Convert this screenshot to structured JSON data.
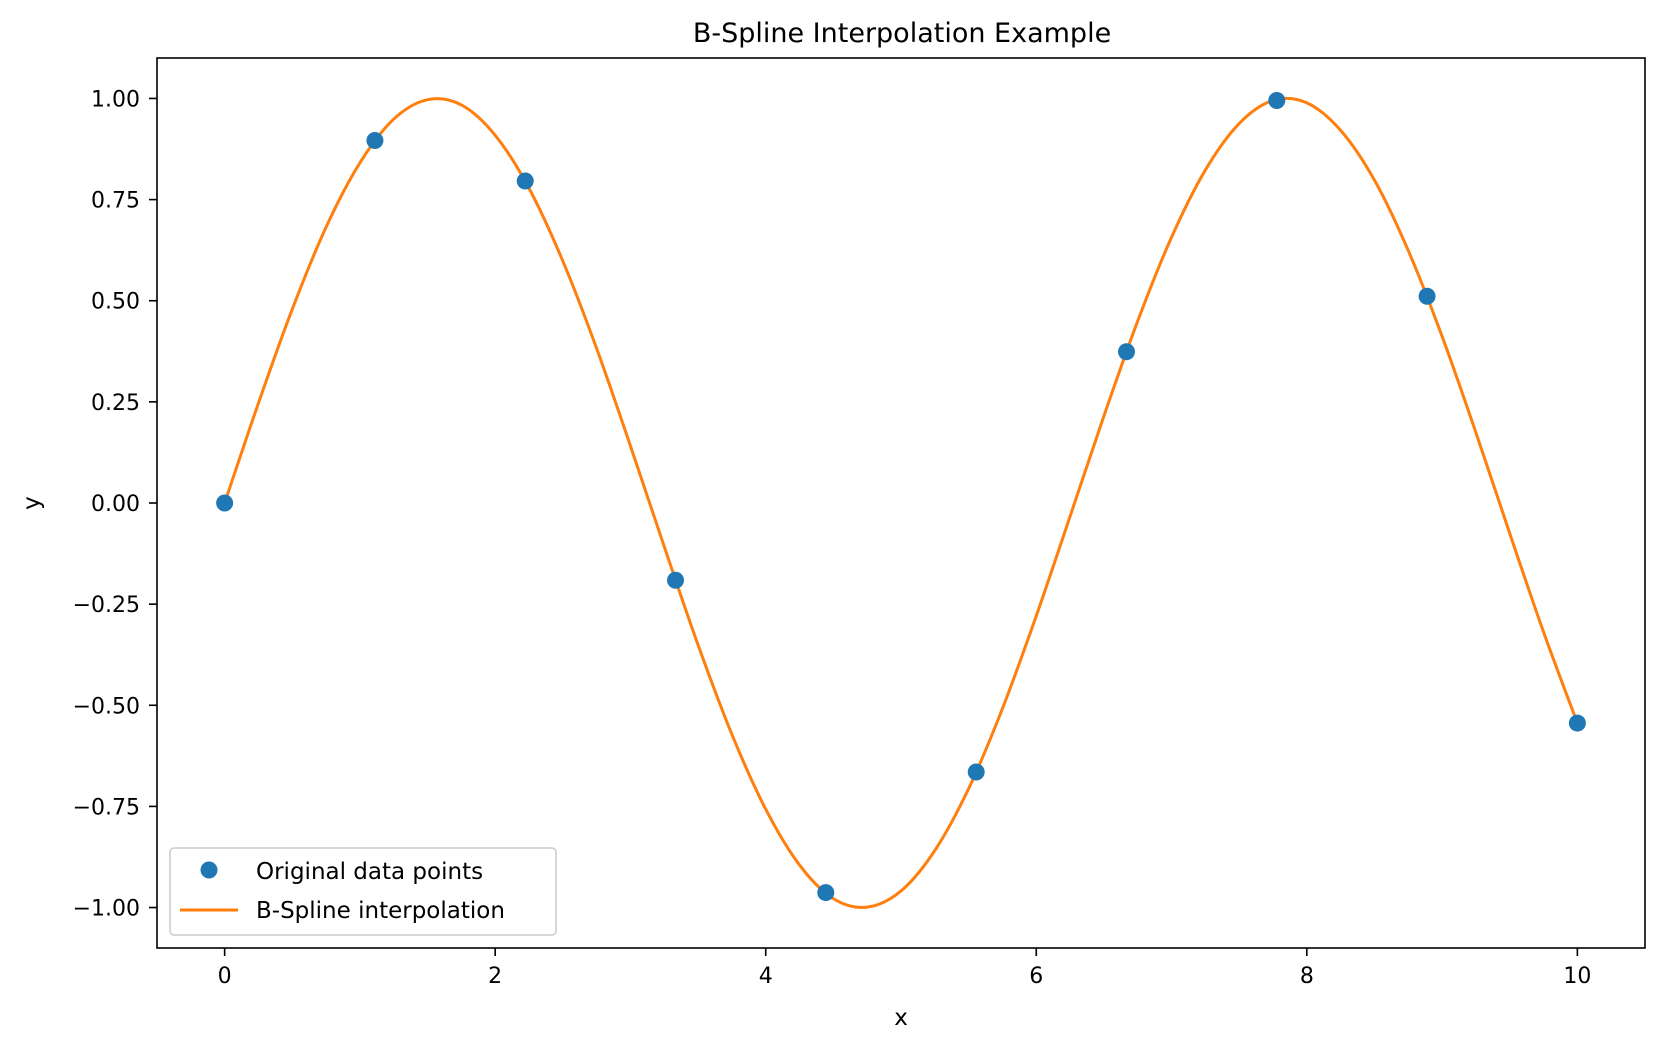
{
  "chart_data": {
    "type": "line",
    "title": "B-Spline Interpolation Example",
    "xlabel": "x",
    "ylabel": "y",
    "xlim": [
      -0.5,
      10.5
    ],
    "ylim": [
      -1.1,
      1.1
    ],
    "xticks": [
      0,
      2,
      4,
      6,
      8,
      10
    ],
    "xtick_labels": [
      "0",
      "2",
      "4",
      "6",
      "8",
      "10"
    ],
    "yticks": [
      -1.0,
      -0.75,
      -0.5,
      -0.25,
      0.0,
      0.25,
      0.5,
      0.75,
      1.0
    ],
    "ytick_labels": [
      "−1.00",
      "−0.75",
      "−0.50",
      "−0.25",
      "0.00",
      "0.25",
      "0.50",
      "0.75",
      "1.00"
    ],
    "grid": false,
    "legend_position": "lower left",
    "series": [
      {
        "name": "Original data points",
        "kind": "scatter",
        "color": "#1f77b4",
        "x": [
          0.0,
          1.111,
          2.222,
          3.333,
          4.444,
          5.556,
          6.667,
          7.778,
          8.889,
          10.0
        ],
        "y": [
          0.0,
          0.896,
          0.796,
          -0.191,
          -0.963,
          -0.665,
          0.374,
          0.995,
          0.511,
          -0.544
        ]
      },
      {
        "name": "B-Spline interpolation",
        "kind": "line",
        "color": "#ff7f0e",
        "x": [
          0.0,
          0.25,
          0.5,
          0.75,
          1.0,
          1.25,
          1.5,
          1.75,
          2.0,
          2.25,
          2.5,
          2.75,
          3.0,
          3.25,
          3.5,
          3.75,
          4.0,
          4.25,
          4.5,
          4.75,
          5.0,
          5.25,
          5.5,
          5.75,
          6.0,
          6.25,
          6.5,
          6.75,
          7.0,
          7.25,
          7.5,
          7.75,
          8.0,
          8.25,
          8.5,
          8.75,
          9.0,
          9.25,
          9.5,
          9.75,
          10.0
        ],
        "y": [
          0.0,
          0.247,
          0.479,
          0.682,
          0.841,
          0.949,
          0.997,
          0.984,
          0.909,
          0.778,
          0.598,
          0.382,
          0.141,
          -0.108,
          -0.351,
          -0.572,
          -0.757,
          -0.895,
          -0.978,
          -0.999,
          -0.959,
          -0.859,
          -0.706,
          -0.508,
          -0.279,
          -0.033,
          0.215,
          0.45,
          0.657,
          0.823,
          0.938,
          0.995,
          0.989,
          0.921,
          0.798,
          0.624,
          0.412,
          0.174,
          -0.075,
          -0.319,
          -0.544
        ]
      }
    ]
  }
}
